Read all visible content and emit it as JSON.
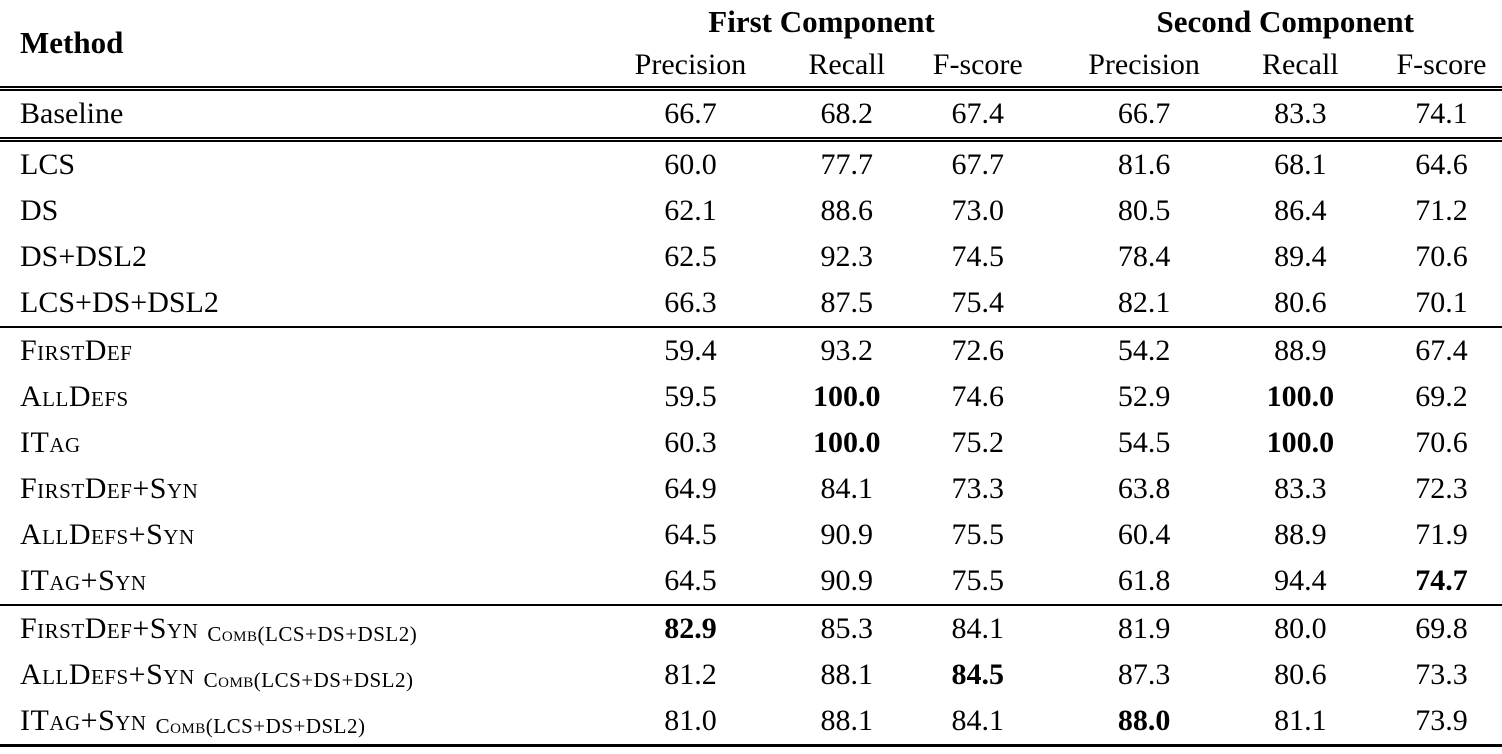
{
  "table": {
    "header": {
      "method_label": "Method",
      "groups": [
        {
          "label": "First Component",
          "columns": [
            "Precision",
            "Recall",
            "F-score"
          ]
        },
        {
          "label": "Second Component",
          "columns": [
            "Precision",
            "Recall",
            "F-score"
          ]
        }
      ]
    },
    "rows": [
      {
        "method": "Baseline",
        "sc": false,
        "sub": null,
        "values": [
          "66.7",
          "68.2",
          "67.4",
          "66.7",
          "83.3",
          "74.1"
        ],
        "bold": [
          0,
          0,
          0,
          0,
          0,
          0
        ],
        "rule": "double"
      },
      {
        "method": "LCS",
        "sc": false,
        "sub": null,
        "values": [
          "60.0",
          "77.7",
          "67.7",
          "81.6",
          "68.1",
          "64.6"
        ],
        "bold": [
          0,
          0,
          0,
          0,
          0,
          0
        ],
        "rule": null
      },
      {
        "method": "DS",
        "sc": false,
        "sub": null,
        "values": [
          "62.1",
          "88.6",
          "73.0",
          "80.5",
          "86.4",
          "71.2"
        ],
        "bold": [
          0,
          0,
          0,
          0,
          0,
          0
        ],
        "rule": null
      },
      {
        "method": "DS+DSL2",
        "sc": false,
        "sub": null,
        "values": [
          "62.5",
          "92.3",
          "74.5",
          "78.4",
          "89.4",
          "70.6"
        ],
        "bold": [
          0,
          0,
          0,
          0,
          0,
          0
        ],
        "rule": null
      },
      {
        "method": "LCS+DS+DSL2",
        "sc": false,
        "sub": null,
        "values": [
          "66.3",
          "87.5",
          "75.4",
          "82.1",
          "80.6",
          "70.1"
        ],
        "bold": [
          0,
          0,
          0,
          0,
          0,
          0
        ],
        "rule": "single"
      },
      {
        "method": "FirstDef",
        "sc": true,
        "sub": null,
        "values": [
          "59.4",
          "93.2",
          "72.6",
          "54.2",
          "88.9",
          "67.4"
        ],
        "bold": [
          0,
          0,
          0,
          0,
          0,
          0
        ],
        "rule": null
      },
      {
        "method": "AllDefs",
        "sc": true,
        "sub": null,
        "values": [
          "59.5",
          "100.0",
          "74.6",
          "52.9",
          "100.0",
          "69.2"
        ],
        "bold": [
          0,
          1,
          0,
          0,
          1,
          0
        ],
        "rule": null
      },
      {
        "method": "ITag",
        "sc": true,
        "sub": null,
        "values": [
          "60.3",
          "100.0",
          "75.2",
          "54.5",
          "100.0",
          "70.6"
        ],
        "bold": [
          0,
          1,
          0,
          0,
          1,
          0
        ],
        "rule": null
      },
      {
        "method": "FirstDef+Syn",
        "sc": true,
        "sub": null,
        "values": [
          "64.9",
          "84.1",
          "73.3",
          "63.8",
          "83.3",
          "72.3"
        ],
        "bold": [
          0,
          0,
          0,
          0,
          0,
          0
        ],
        "rule": null
      },
      {
        "method": "AllDefs+Syn",
        "sc": true,
        "sub": null,
        "values": [
          "64.5",
          "90.9",
          "75.5",
          "60.4",
          "88.9",
          "71.9"
        ],
        "bold": [
          0,
          0,
          0,
          0,
          0,
          0
        ],
        "rule": null
      },
      {
        "method": "ITag+Syn",
        "sc": true,
        "sub": null,
        "values": [
          "64.5",
          "90.9",
          "75.5",
          "61.8",
          "94.4",
          "74.7"
        ],
        "bold": [
          0,
          0,
          0,
          0,
          0,
          1
        ],
        "rule": "single"
      },
      {
        "method": "FirstDef+Syn",
        "sc": true,
        "sub": "Comb(LCS+DS+DSL2)",
        "values": [
          "82.9",
          "85.3",
          "84.1",
          "81.9",
          "80.0",
          "69.8"
        ],
        "bold": [
          1,
          0,
          0,
          0,
          0,
          0
        ],
        "rule": null
      },
      {
        "method": "AllDefs+Syn",
        "sc": true,
        "sub": "Comb(LCS+DS+DSL2)",
        "values": [
          "81.2",
          "88.1",
          "84.5",
          "87.3",
          "80.6",
          "73.3"
        ],
        "bold": [
          0,
          0,
          1,
          0,
          0,
          0
        ],
        "rule": null
      },
      {
        "method": "ITag+Syn",
        "sc": true,
        "sub": "Comb(LCS+DS+DSL2)",
        "values": [
          "81.0",
          "88.1",
          "84.1",
          "88.0",
          "81.1",
          "73.9"
        ],
        "bold": [
          0,
          0,
          0,
          1,
          0,
          0
        ],
        "rule": "last"
      }
    ]
  }
}
